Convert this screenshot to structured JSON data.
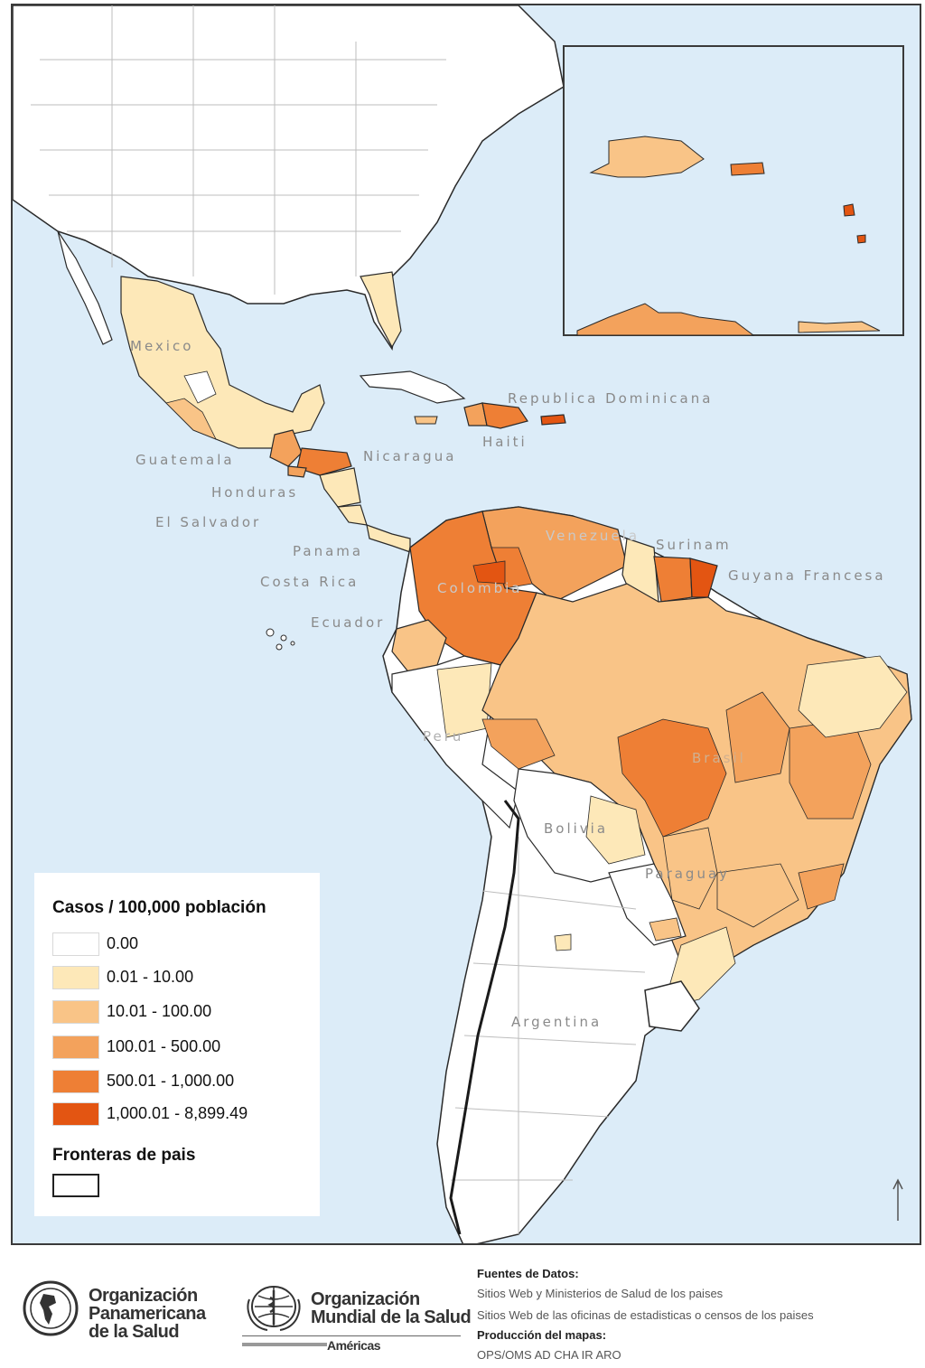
{
  "colors": {
    "water": "#dcecf8",
    "class_0": "#ffffff",
    "class_1": "#fde8b8",
    "class_2": "#f9c487",
    "class_3": "#f3a25c",
    "class_4": "#ee7f35",
    "class_5": "#e35512",
    "border": "#2a2a2a"
  },
  "map_labels": {
    "mexico": "Mexico",
    "republica_dominicana": "Republica Dominicana",
    "haiti": "Haiti",
    "guatemala": "Guatemala",
    "nicaragua": "Nicaragua",
    "honduras": "Honduras",
    "el_salvador": "El Salvador",
    "panama": "Panama",
    "costa_rica": "Costa Rica",
    "venezuela": "Venezuela",
    "surinam": "Surinam",
    "guyana_francesa": "Guyana Francesa",
    "colombia": "Colombia",
    "ecuador": "Ecuador",
    "peru": "Peru",
    "brasil": "Brasil",
    "bolivia": "Bolivia",
    "paraguay": "Paraguay",
    "argentina": "Argentina"
  },
  "legend": {
    "title": "Casos / 100,000 población",
    "classes": [
      {
        "label": "0.00",
        "color": "#ffffff"
      },
      {
        "label": "0.01 - 10.00",
        "color": "#fde8b8"
      },
      {
        "label": "10.01 - 100.00",
        "color": "#f9c487"
      },
      {
        "label": "100.01 - 500.00",
        "color": "#f3a25c"
      },
      {
        "label": "500.01 - 1,000.00",
        "color": "#ee7f35"
      },
      {
        "label": "1,000.01 - 8,899.49",
        "color": "#e35512"
      }
    ],
    "borders_title": "Fronteras de pais"
  },
  "footer": {
    "paho_line1": "Organización",
    "paho_line2": "Panamericana",
    "paho_line3": "de la Salud",
    "who_line1": "Organización",
    "who_line2": "Mundial de la Salud",
    "who_sub": "Américas",
    "sources_title": "Fuentes de Datos:",
    "sources_line1": "Sitios Web y Ministerios de Salud de los paises",
    "sources_line2": "Sitios Web de las oficinas de estadisticas o censos de los paises",
    "production_title": "Producción del mapas:",
    "production_line": "OPS/OMS AD CHA IR ARO"
  },
  "icons": {
    "paho_logo": "paho-globe-emblem-icon",
    "who_logo": "who-emblem-icon",
    "north_arrow": "north-arrow-icon"
  }
}
